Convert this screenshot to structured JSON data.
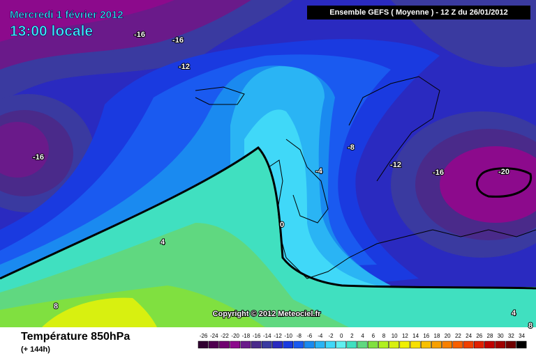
{
  "header": {
    "date": "Mercredi 1 février 2012",
    "time": "13:00 locale",
    "run": "Ensemble GEFS ( Moyenne )  -  12 Z du 26/01/2012"
  },
  "footer": {
    "title": "Température 850hPa",
    "lead": "(+ 144h)",
    "copyright": "Copyright © 2012 Meteociel.fr"
  },
  "contour_labels": [
    -16,
    -16,
    -12,
    -16,
    -8,
    -4,
    -12,
    -16,
    -20,
    0,
    4,
    8,
    4,
    8
  ],
  "scale": {
    "values": [
      -26,
      -24,
      -22,
      -20,
      -18,
      -16,
      -14,
      -12,
      -10,
      -8,
      -6,
      -4,
      -2,
      0,
      2,
      4,
      6,
      8,
      10,
      12,
      14,
      16,
      18,
      20,
      22,
      24,
      26,
      28,
      30,
      32,
      34
    ],
    "colors": [
      "#300030",
      "#500050",
      "#700070",
      "#8c0a8c",
      "#6a1a8a",
      "#4a2a8a",
      "#3a3aa0",
      "#2a2ac0",
      "#1a3ae0",
      "#1a5af0",
      "#1a8af0",
      "#2ab4f4",
      "#40d8f8",
      "#60f0f0",
      "#40e0c0",
      "#60d880",
      "#80e040",
      "#b0f020",
      "#d8f010",
      "#f0f000",
      "#f8e000",
      "#f8c000",
      "#f8a000",
      "#f88000",
      "#f86000",
      "#f04000",
      "#e02000",
      "#c00000",
      "#a00000",
      "#700000",
      "#000000"
    ]
  }
}
